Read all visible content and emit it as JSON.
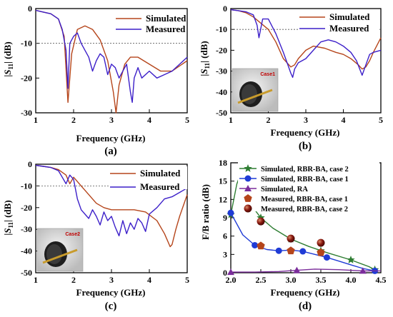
{
  "chart_data": [
    {
      "type": "line",
      "panel_label": "(a)",
      "xlabel": "Frequency (GHz)",
      "ylabel": "|S11| (dB)",
      "xlim": [
        1,
        5
      ],
      "ylim": [
        -30,
        0
      ],
      "xticks": [
        "1",
        "2",
        "3",
        "4",
        "5"
      ],
      "yticks": [
        "0",
        "-10",
        "-20",
        "-30"
      ],
      "reference_line": -10,
      "legend_position": "top-right",
      "series": [
        {
          "name": "Simulated",
          "color": "#b5451b",
          "x": [
            1.0,
            1.2,
            1.4,
            1.6,
            1.75,
            1.85,
            1.95,
            2.1,
            2.3,
            2.5,
            2.7,
            2.9,
            3.05,
            3.12,
            3.2,
            3.35,
            3.5,
            3.7,
            4.0,
            4.3,
            4.6,
            5.0
          ],
          "y": [
            -0.5,
            -1,
            -1.5,
            -3,
            -8,
            -27,
            -13,
            -6,
            -5,
            -6,
            -9,
            -15,
            -24,
            -30,
            -22,
            -16,
            -14,
            -14,
            -16,
            -18,
            -18,
            -15
          ]
        },
        {
          "name": "Measured",
          "color": "#3c1fc9",
          "x": [
            1.0,
            1.2,
            1.4,
            1.6,
            1.7,
            1.8,
            1.85,
            1.9,
            2.0,
            2.1,
            2.2,
            2.3,
            2.4,
            2.5,
            2.6,
            2.7,
            2.8,
            2.9,
            3.0,
            3.1,
            3.2,
            3.3,
            3.4,
            3.5,
            3.55,
            3.6,
            3.7,
            3.8,
            4.0,
            4.2,
            4.4,
            4.6,
            4.8,
            5.0
          ],
          "y": [
            -0.5,
            -1,
            -1.5,
            -3,
            -6,
            -12,
            -23,
            -10,
            -8,
            -7,
            -10,
            -12,
            -14,
            -18,
            -15,
            -13,
            -14,
            -19,
            -16,
            -17,
            -20,
            -18,
            -16,
            -24,
            -27,
            -20,
            -17,
            -20,
            -18,
            -20,
            -19,
            -18,
            -16,
            -14
          ]
        }
      ]
    },
    {
      "type": "line",
      "panel_label": "(b)",
      "xlabel": "Frequency (GHz)",
      "ylabel": "|S11| (dB)",
      "xlim": [
        1,
        5
      ],
      "ylim": [
        -50,
        0
      ],
      "xticks": [
        "1",
        "2",
        "3",
        "4",
        "5"
      ],
      "yticks": [
        "0",
        "-10",
        "-20",
        "-30",
        "-40",
        "-50"
      ],
      "reference_line": -10,
      "legend_position": "top-right",
      "inset_label": "Case1",
      "series": [
        {
          "name": "Simulated",
          "color": "#b5451b",
          "x": [
            1.0,
            1.2,
            1.4,
            1.6,
            1.8,
            2.0,
            2.2,
            2.4,
            2.6,
            2.7,
            2.8,
            3.0,
            3.2,
            3.5,
            3.8,
            4.0,
            4.2,
            4.4,
            4.5,
            4.6,
            4.7,
            4.8,
            5.0
          ],
          "y": [
            -0.5,
            -1,
            -2,
            -4,
            -7,
            -10,
            -16,
            -24,
            -28,
            -27,
            -24,
            -20,
            -18,
            -19,
            -21,
            -22,
            -24,
            -27,
            -29,
            -28,
            -25,
            -21,
            -14
          ]
        },
        {
          "name": "Measured",
          "color": "#3c1fc9",
          "x": [
            1.0,
            1.2,
            1.4,
            1.6,
            1.7,
            1.75,
            1.85,
            2.0,
            2.2,
            2.4,
            2.5,
            2.6,
            2.65,
            2.7,
            2.8,
            3.0,
            3.2,
            3.4,
            3.6,
            3.8,
            4.0,
            4.2,
            4.35,
            4.5,
            4.6,
            4.7,
            4.8,
            5.0
          ],
          "y": [
            -0.5,
            -1,
            -1.5,
            -3,
            -8,
            -14,
            -5,
            -5,
            -12,
            -21,
            -26,
            -31,
            -33,
            -29,
            -26,
            -24,
            -20,
            -16,
            -15,
            -16,
            -18,
            -21,
            -25,
            -32,
            -27,
            -22,
            -21,
            -20
          ]
        }
      ]
    },
    {
      "type": "line",
      "panel_label": "(c)",
      "xlabel": "Frequency (GHz)",
      "ylabel": "|S11| (dB)",
      "xlim": [
        1,
        5
      ],
      "ylim": [
        -50,
        0
      ],
      "xticks": [
        "1",
        "2",
        "3",
        "4",
        "5"
      ],
      "yticks": [
        "0",
        "-10",
        "-20",
        "-30",
        "-40",
        "-50"
      ],
      "reference_line": -10,
      "legend_position": "top-right",
      "inset_label": "Case2",
      "series": [
        {
          "name": "Simulated",
          "color": "#b5451b",
          "x": [
            1.0,
            1.2,
            1.4,
            1.6,
            1.8,
            1.9,
            2.0,
            2.2,
            2.4,
            2.6,
            2.8,
            3.0,
            3.3,
            3.6,
            3.9,
            4.2,
            4.4,
            4.55,
            4.6,
            4.7,
            4.8,
            5.0
          ],
          "y": [
            -0.5,
            -1,
            -1.5,
            -2.5,
            -5,
            -9,
            -6,
            -10,
            -14,
            -18,
            -20,
            -21,
            -21,
            -21,
            -22,
            -26,
            -32,
            -38,
            -37,
            -30,
            -24,
            -14
          ]
        },
        {
          "name": "Measured",
          "color": "#3c1fc9",
          "x": [
            1.0,
            1.2,
            1.4,
            1.6,
            1.7,
            1.8,
            1.9,
            2.0,
            2.1,
            2.2,
            2.4,
            2.5,
            2.6,
            2.7,
            2.8,
            2.9,
            3.0,
            3.1,
            3.2,
            3.3,
            3.4,
            3.5,
            3.6,
            3.7,
            3.8,
            3.9,
            4.0,
            4.2,
            4.4,
            4.6,
            4.8,
            5.0
          ],
          "y": [
            -0.5,
            -1,
            -1.5,
            -3,
            -6,
            -9,
            -5,
            -7,
            -16,
            -21,
            -25,
            -21,
            -24,
            -28,
            -22,
            -26,
            -24,
            -29,
            -33,
            -26,
            -32,
            -27,
            -30,
            -25,
            -27,
            -31,
            -23,
            -20,
            -16,
            -15,
            -13,
            -11
          ]
        }
      ]
    },
    {
      "type": "line",
      "panel_label": "(d)",
      "xlabel": "Frequency (GHz)",
      "ylabel": "F/B ratio (dB)",
      "xlim": [
        2.0,
        4.5
      ],
      "ylim": [
        0,
        18
      ],
      "xticks": [
        "2.0",
        "2.5",
        "3.0",
        "3.5",
        "4.0",
        "4.5"
      ],
      "yticks": [
        "0",
        "3",
        "6",
        "9",
        "12",
        "15",
        "18"
      ],
      "legend_position": "top-right",
      "series": [
        {
          "name": "Simulated, RBR-BA, case 2",
          "color": "#2e7d32",
          "marker": "star",
          "x": [
            2.0,
            2.1,
            2.15,
            2.2,
            2.25,
            2.3,
            2.4,
            2.5,
            2.7,
            3.0,
            3.3,
            3.6,
            4.0,
            4.3,
            4.4
          ],
          "y": [
            9.5,
            14.5,
            15.9,
            15.9,
            14.0,
            12.2,
            10.3,
            9.0,
            7.3,
            5.5,
            4.3,
            3.3,
            2.1,
            1.0,
            0.5
          ],
          "markers_x": [
            2.0,
            2.5,
            3.0,
            3.5,
            4.0,
            4.4
          ],
          "markers_y": [
            9.5,
            9.0,
            5.5,
            3.6,
            2.1,
            0.5
          ]
        },
        {
          "name": "Simulated, RBR-BA, case 1",
          "color": "#1f3bd6",
          "marker": "circle",
          "x": [
            2.0,
            2.2,
            2.4,
            2.6,
            2.8,
            3.0,
            3.2,
            3.4,
            3.6,
            3.8,
            4.0,
            4.2,
            4.4
          ],
          "y": [
            9.8,
            6.2,
            4.5,
            3.8,
            3.6,
            3.7,
            3.5,
            3.0,
            2.5,
            1.9,
            1.3,
            0.7,
            0.3
          ],
          "markers_x": [
            2.0,
            2.4,
            2.8,
            3.2,
            3.6,
            4.4
          ],
          "markers_y": [
            9.8,
            4.5,
            3.6,
            3.5,
            2.5,
            0.3
          ]
        },
        {
          "name": "Simulated, RA",
          "color": "#7b2d9b",
          "marker": "triangle",
          "x": [
            2.0,
            2.4,
            2.8,
            3.1,
            3.4,
            3.8,
            4.2,
            4.5
          ],
          "y": [
            0.1,
            0.1,
            0.2,
            0.4,
            0.6,
            0.5,
            0.3,
            0.3
          ],
          "markers_x": [
            2.0,
            3.1,
            4.2
          ],
          "markers_y": [
            0.1,
            0.4,
            0.3
          ]
        },
        {
          "name": "Measured, RBR-BA, case 1",
          "color": "#b5451b",
          "marker": "pentagon",
          "markers_x": [
            2.5,
            3.0,
            3.5
          ],
          "markers_y": [
            4.4,
            3.6,
            3.3
          ]
        },
        {
          "name": "Measured, RBR-BA, case 2",
          "color": "#8b1a10",
          "marker": "sphere",
          "markers_x": [
            2.5,
            3.0,
            3.5
          ],
          "markers_y": [
            8.4,
            5.6,
            4.9
          ]
        }
      ]
    }
  ]
}
